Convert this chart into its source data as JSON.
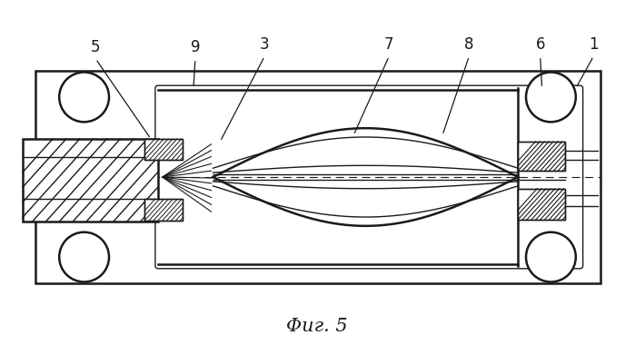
{
  "title": "Φиг. 5",
  "title_fontsize": 15,
  "background_color": "#ffffff",
  "line_color": "#1a1a1a",
  "label_fontsize": 12,
  "lw_main": 1.8,
  "lw_thin": 1.0,
  "lw_hair": 0.7,
  "fig_w": 6.99,
  "fig_h": 3.91,
  "dpi": 100
}
